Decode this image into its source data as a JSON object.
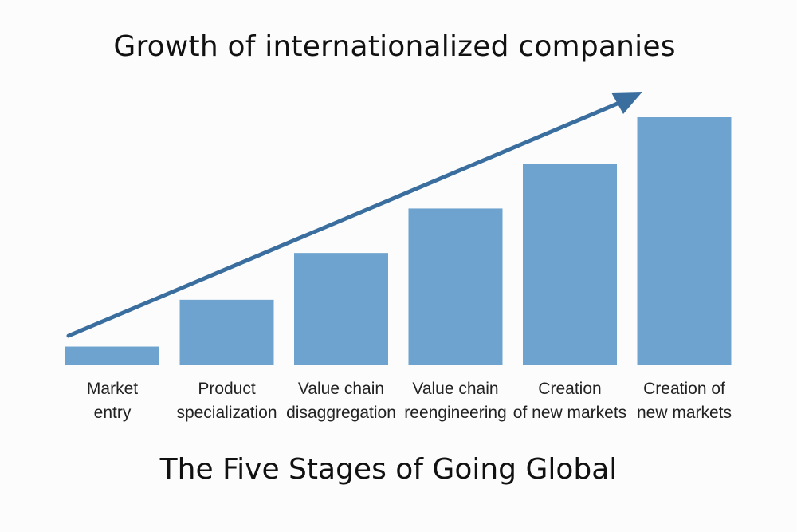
{
  "chart_data": {
    "type": "bar",
    "title": "Growth of internationalized companies",
    "subtitle": "The Five Stages of Going Global",
    "categories": [
      [
        "Market",
        "entry"
      ],
      [
        "Product",
        "specialization"
      ],
      [
        "Value chain",
        "disaggregation"
      ],
      [
        "Value chain",
        "reengineering"
      ],
      [
        "Creation",
        "of new markets"
      ],
      [
        "Creation of",
        "new markets"
      ]
    ],
    "values": [
      8,
      28,
      48,
      67,
      86,
      106
    ],
    "ylim": [
      0,
      110
    ],
    "trend_arrow": true,
    "colors": {
      "bar": "#6fa3cf",
      "arrow": "#3a6e9e"
    }
  }
}
